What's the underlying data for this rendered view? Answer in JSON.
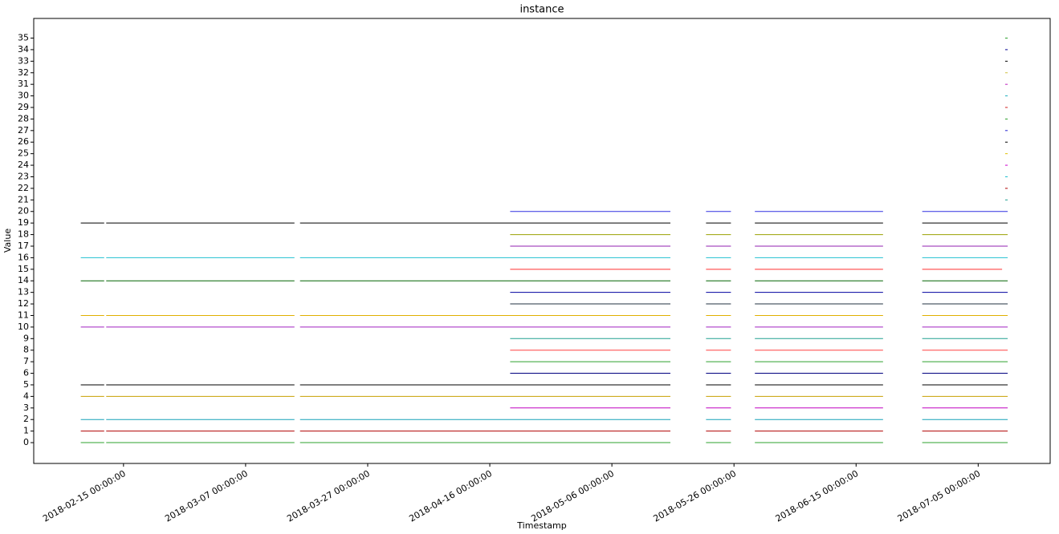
{
  "chart_data": {
    "type": "line",
    "title": "instance",
    "x_label": "Timestamp",
    "y_label": "Value",
    "xlim": [
      "2018-01-31 07:00:00",
      "2018-07-16 19:00:00"
    ],
    "xticks": [
      "2018-02-15 00:00:00",
      "2018-03-07 00:00:00",
      "2018-03-27 00:00:00",
      "2018-04-16 00:00:00",
      "2018-05-06 00:00:00",
      "2018-05-26 00:00:00",
      "2018-06-15 00:00:00",
      "2018-07-05 00:00:00"
    ],
    "ylim": [
      -1.8,
      36.7
    ],
    "yticks": [
      0,
      1,
      2,
      3,
      4,
      5,
      6,
      7,
      8,
      9,
      10,
      11,
      12,
      13,
      14,
      15,
      16,
      17,
      18,
      19,
      20,
      21,
      22,
      23,
      24,
      25,
      26,
      27,
      28,
      29,
      30,
      31,
      32,
      33,
      34,
      35
    ],
    "x": [
      "2018-02-08 00:00:00",
      "2018-02-11 20:00:00",
      "2018-02-12 00:00:00",
      "2018-02-12 04:00:00",
      "2018-03-15 00:00:00",
      "2018-03-15 12:00:00",
      "2018-03-15 22:00:00",
      "2018-04-19 08:00:00",
      "2018-05-15 14:00:00",
      "2018-05-18 00:00:00",
      "2018-05-21 10:00:00",
      "2018-05-25 12:00:00",
      "2018-05-27 00:00:00",
      "2018-05-29 10:00:00",
      "2018-06-19 10:00:00",
      "2018-06-22 00:00:00",
      "2018-06-25 20:00:00",
      "2018-07-08 22:00:00",
      "2018-07-09 10:00:00",
      "2018-07-09 20:00:00"
    ],
    "series": [
      {
        "color": "#2ca02c",
        "values": [
          0,
          0,
          null,
          0,
          0,
          null,
          0,
          0,
          0,
          null,
          0,
          0,
          null,
          0,
          0,
          null,
          0,
          0,
          0,
          0
        ]
      },
      {
        "color": "#b00000",
        "values": [
          1,
          1,
          null,
          1,
          1,
          null,
          1,
          1,
          1,
          null,
          1,
          1,
          null,
          1,
          1,
          null,
          1,
          1,
          1,
          1
        ]
      },
      {
        "color": "#17a2b8",
        "values": [
          2,
          2,
          null,
          2,
          2,
          null,
          2,
          2,
          2,
          null,
          2,
          2,
          null,
          2,
          2,
          null,
          2,
          2,
          2,
          2
        ]
      },
      {
        "color": "#c000c0",
        "values": [
          null,
          null,
          null,
          null,
          null,
          null,
          null,
          3,
          3,
          null,
          3,
          3,
          null,
          3,
          3,
          null,
          3,
          3,
          3,
          3
        ]
      },
      {
        "color": "#c8a000",
        "values": [
          4,
          4,
          null,
          4,
          4,
          null,
          4,
          4,
          4,
          null,
          4,
          4,
          null,
          4,
          4,
          null,
          4,
          4,
          4,
          4
        ]
      },
      {
        "color": "#000000",
        "values": [
          5,
          5,
          null,
          5,
          5,
          null,
          5,
          5,
          5,
          null,
          5,
          5,
          null,
          5,
          5,
          null,
          5,
          5,
          5,
          5
        ]
      },
      {
        "color": "#000080",
        "values": [
          null,
          null,
          null,
          null,
          null,
          null,
          null,
          6,
          6,
          null,
          6,
          6,
          null,
          6,
          6,
          null,
          6,
          6,
          6,
          6
        ]
      },
      {
        "color": "#2ca02c",
        "values": [
          null,
          null,
          null,
          null,
          null,
          null,
          null,
          7,
          7,
          null,
          7,
          7,
          null,
          7,
          7,
          null,
          7,
          7,
          7,
          7
        ]
      },
      {
        "color": "#ff4040",
        "values": [
          null,
          null,
          null,
          null,
          null,
          null,
          null,
          8,
          8,
          null,
          8,
          8,
          null,
          8,
          8,
          null,
          8,
          8,
          8,
          8
        ]
      },
      {
        "color": "#20a090",
        "values": [
          null,
          null,
          null,
          null,
          null,
          null,
          null,
          9,
          9,
          null,
          9,
          9,
          null,
          9,
          9,
          null,
          9,
          9,
          9,
          9
        ]
      },
      {
        "color": "#a020c0",
        "values": [
          10,
          10,
          null,
          10,
          10,
          null,
          10,
          10,
          10,
          null,
          10,
          10,
          null,
          10,
          10,
          null,
          10,
          10,
          10,
          10
        ]
      },
      {
        "color": "#e0b000",
        "values": [
          11,
          11,
          null,
          11,
          11,
          null,
          11,
          11,
          11,
          null,
          11,
          11,
          null,
          11,
          11,
          null,
          11,
          11,
          11,
          11
        ]
      },
      {
        "color": "#203040",
        "values": [
          null,
          null,
          null,
          null,
          null,
          null,
          null,
          12,
          12,
          null,
          12,
          12,
          null,
          12,
          12,
          null,
          12,
          12,
          12,
          12
        ]
      },
      {
        "color": "#0000a0",
        "values": [
          null,
          null,
          null,
          null,
          null,
          null,
          null,
          13,
          13,
          null,
          13,
          13,
          null,
          13,
          13,
          null,
          13,
          13,
          13,
          13
        ]
      },
      {
        "color": "#006400",
        "values": [
          14,
          14,
          null,
          14,
          14,
          null,
          14,
          14,
          14,
          null,
          14,
          14,
          null,
          14,
          14,
          null,
          14,
          14,
          14,
          14
        ]
      },
      {
        "color": "#ff3030",
        "values": [
          null,
          null,
          null,
          null,
          null,
          null,
          null,
          15,
          15,
          null,
          15,
          15,
          null,
          15,
          15,
          null,
          15,
          15,
          null,
          null
        ]
      },
      {
        "color": "#20c0d0",
        "values": [
          16,
          16,
          null,
          16,
          16,
          null,
          16,
          16,
          16,
          null,
          16,
          16,
          null,
          16,
          16,
          null,
          16,
          16,
          16,
          16
        ]
      },
      {
        "color": "#9020b0",
        "values": [
          null,
          null,
          null,
          null,
          null,
          null,
          null,
          17,
          17,
          null,
          17,
          17,
          null,
          17,
          17,
          null,
          17,
          17,
          17,
          17
        ]
      },
      {
        "color": "#9aa000",
        "values": [
          null,
          null,
          null,
          null,
          null,
          null,
          null,
          18,
          18,
          null,
          18,
          18,
          null,
          18,
          18,
          null,
          18,
          18,
          18,
          18
        ]
      },
      {
        "color": "#000000",
        "values": [
          19,
          19,
          null,
          19,
          19,
          null,
          19,
          19,
          19,
          null,
          19,
          19,
          null,
          19,
          19,
          null,
          19,
          19,
          19,
          19
        ]
      },
      {
        "color": "#3030e0",
        "values": [
          null,
          null,
          null,
          null,
          null,
          null,
          null,
          20,
          20,
          null,
          20,
          20,
          null,
          20,
          20,
          null,
          20,
          20,
          20,
          20
        ]
      },
      {
        "color": "#20a090",
        "values": [
          null,
          null,
          null,
          null,
          null,
          null,
          null,
          null,
          null,
          null,
          null,
          null,
          null,
          null,
          null,
          null,
          null,
          null,
          21,
          21
        ]
      },
      {
        "color": "#b00000",
        "values": [
          null,
          null,
          null,
          null,
          null,
          null,
          null,
          null,
          null,
          null,
          null,
          null,
          null,
          null,
          null,
          null,
          null,
          null,
          22,
          22
        ]
      },
      {
        "color": "#20c0d0",
        "values": [
          null,
          null,
          null,
          null,
          null,
          null,
          null,
          null,
          null,
          null,
          null,
          null,
          null,
          null,
          null,
          null,
          null,
          null,
          23,
          23
        ]
      },
      {
        "color": "#d000d0",
        "values": [
          null,
          null,
          null,
          null,
          null,
          null,
          null,
          null,
          null,
          null,
          null,
          null,
          null,
          null,
          null,
          null,
          null,
          null,
          24,
          24
        ]
      },
      {
        "color": "#e0c000",
        "values": [
          null,
          null,
          null,
          null,
          null,
          null,
          null,
          null,
          null,
          null,
          null,
          null,
          null,
          null,
          null,
          null,
          null,
          null,
          25,
          25
        ]
      },
      {
        "color": "#000000",
        "values": [
          null,
          null,
          null,
          null,
          null,
          null,
          null,
          null,
          null,
          null,
          null,
          null,
          null,
          null,
          null,
          null,
          null,
          null,
          26,
          26
        ]
      },
      {
        "color": "#2020d0",
        "values": [
          null,
          null,
          null,
          null,
          null,
          null,
          null,
          null,
          null,
          null,
          null,
          null,
          null,
          null,
          null,
          null,
          null,
          null,
          27,
          27
        ]
      },
      {
        "color": "#2ca02c",
        "values": [
          null,
          null,
          null,
          null,
          null,
          null,
          null,
          null,
          null,
          null,
          null,
          null,
          null,
          null,
          null,
          null,
          null,
          null,
          28,
          28
        ]
      },
      {
        "color": "#d02020",
        "values": [
          null,
          null,
          null,
          null,
          null,
          null,
          null,
          null,
          null,
          null,
          null,
          null,
          null,
          null,
          null,
          null,
          null,
          null,
          29,
          29
        ]
      },
      {
        "color": "#20b0c0",
        "values": [
          null,
          null,
          null,
          null,
          null,
          null,
          null,
          null,
          null,
          null,
          null,
          null,
          null,
          null,
          null,
          null,
          null,
          null,
          30,
          30
        ]
      },
      {
        "color": "#c020c0",
        "values": [
          null,
          null,
          null,
          null,
          null,
          null,
          null,
          null,
          null,
          null,
          null,
          null,
          null,
          null,
          null,
          null,
          null,
          null,
          31,
          31
        ]
      },
      {
        "color": "#d0c040",
        "values": [
          null,
          null,
          null,
          null,
          null,
          null,
          null,
          null,
          null,
          null,
          null,
          null,
          null,
          null,
          null,
          null,
          null,
          null,
          32,
          32
        ]
      },
      {
        "color": "#000000",
        "values": [
          null,
          null,
          null,
          null,
          null,
          null,
          null,
          null,
          null,
          null,
          null,
          null,
          null,
          null,
          null,
          null,
          null,
          null,
          33,
          33
        ]
      },
      {
        "color": "#000090",
        "values": [
          null,
          null,
          null,
          null,
          null,
          null,
          null,
          null,
          null,
          null,
          null,
          null,
          null,
          null,
          null,
          null,
          null,
          null,
          34,
          34
        ]
      },
      {
        "color": "#2ca02c",
        "values": [
          null,
          null,
          null,
          null,
          null,
          null,
          null,
          null,
          null,
          null,
          null,
          null,
          null,
          null,
          null,
          null,
          null,
          null,
          35,
          35
        ]
      }
    ]
  }
}
